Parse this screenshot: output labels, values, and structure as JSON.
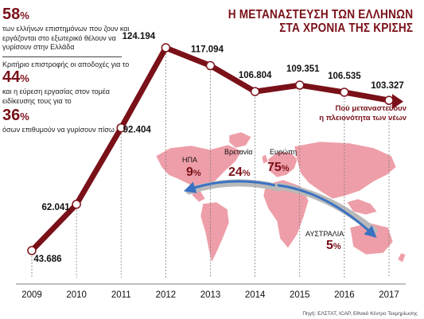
{
  "title": {
    "line1": "Η ΜΕΤΑΝΑΣΤΕΥΣΗ ΤΩΝ ΕΛΛΗΝΩΝ",
    "line2": "ΣΤΑ ΧΡΟΝΙΑ ΤΗΣ ΚΡΙΣΗΣ"
  },
  "stats": [
    {
      "value": "58",
      "symbol": "%",
      "text": "των ελλήνων επιστημόνων που ζουν και εργάζονται στο εξωτερικό θέλουν να γυρίσουν στην Ελλάδα"
    },
    {
      "intro": "Κριτήριο επιστροφής οι αποδοχές για το"
    },
    {
      "value": "44",
      "symbol": "%",
      "text": "και η εύρεση εργασίας στον τομέα ειδίκευσης τους για το"
    },
    {
      "value": "36",
      "symbol": "%",
      "text": "όσων επιθυμούν να γυρίσουν πίσω"
    }
  ],
  "note": {
    "line1": "Πού μεταναστεύουν",
    "line2": "η πλειονότητα των νέων"
  },
  "regions": [
    {
      "name": "ΗΠΑ",
      "value": "9",
      "symbol": "%"
    },
    {
      "name": "Βρετανία",
      "value": "24",
      "symbol": "%"
    },
    {
      "name": "Ευρώπη",
      "value": "75",
      "symbol": "%"
    },
    {
      "name": "ΑΥΣΤΡΑΛΙΑ",
      "value": "5",
      "symbol": "%"
    }
  ],
  "source": "Πηγή: ΕΛΣΤΑΤ, ICAP, Εθνικό Κέντρο Τεκμηρίωσης",
  "colors": {
    "line": "#7a1018",
    "map": "#ee9ea8",
    "arrow_blue": "#3a72c2",
    "arrow_gray": "#b9b9b9",
    "grid": "#7d7d7d"
  },
  "chart_data": {
    "type": "line",
    "categories": [
      "2009",
      "2010",
      "2011",
      "2012",
      "2013",
      "2014",
      "2015",
      "2016",
      "2017"
    ],
    "values": [
      43686,
      62041,
      92404,
      124194,
      117094,
      106804,
      109351,
      106535,
      103327
    ],
    "value_labels": [
      "43.686",
      "62.041",
      "92.404",
      "124.194",
      "117.094",
      "106.804",
      "109.351",
      "106.535",
      "103.327"
    ],
    "ylim": [
      38000,
      128000
    ],
    "grid": "vertical-dashed"
  }
}
